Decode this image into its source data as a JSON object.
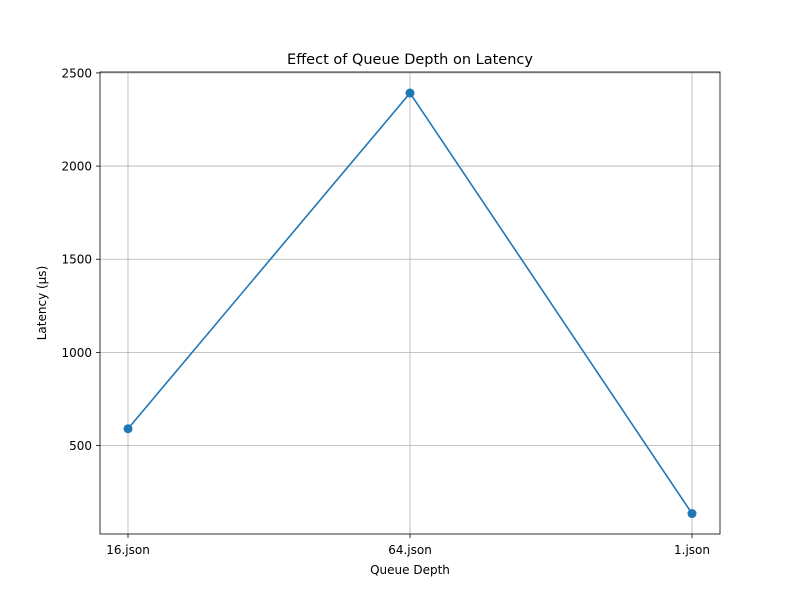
{
  "chart_data": {
    "type": "line",
    "title": "Effect of Queue Depth on Latency",
    "xlabel": "Queue Depth",
    "ylabel": "Latency (µs)",
    "categories": [
      "16.json",
      "64.json",
      "1.json"
    ],
    "series": [
      {
        "values": [
          590,
          2392,
          135
        ],
        "color": "#1f77b4",
        "marker": "circle"
      }
    ],
    "ylim": [
      25,
      2505
    ],
    "yticks": [
      500,
      1000,
      1500,
      2000,
      2500
    ],
    "grid": true
  }
}
